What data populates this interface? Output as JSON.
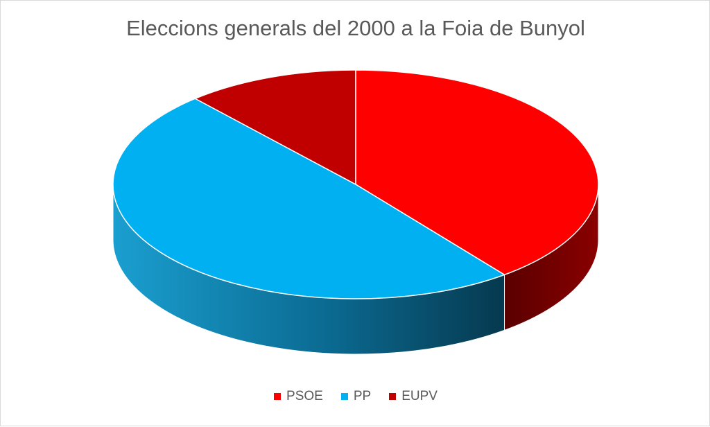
{
  "chart_data": {
    "type": "pie",
    "title": "Eleccions generals del 2000 a la Foia de Bunyol",
    "categories": [
      "PSOE",
      "PP",
      "EUPV"
    ],
    "values": [
      39.5,
      49.0,
      11.5
    ],
    "colors": [
      "#ff0000",
      "#00b0f0",
      "#c00000"
    ],
    "side_colors": [
      "#7a0000",
      "#0a6f98",
      "#7a0000"
    ],
    "legend": "bottom",
    "style": "3d"
  }
}
